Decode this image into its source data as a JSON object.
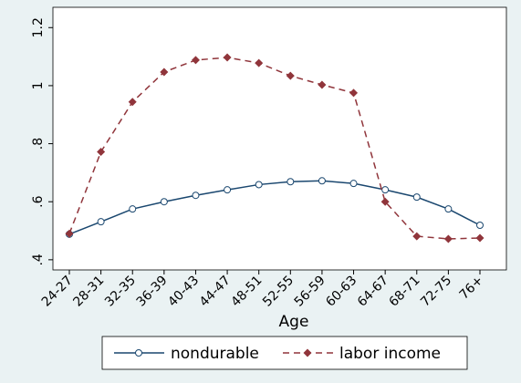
{
  "chart_data": {
    "type": "line",
    "x_label": "Age",
    "categories": [
      "24-27",
      "28-31",
      "32-35",
      "36-39",
      "40-43",
      "44-47",
      "48-51",
      "52-55",
      "56-59",
      "60-63",
      "64-67",
      "68-71",
      "72-75",
      "76+"
    ],
    "series": [
      {
        "name": "nondurable",
        "color": "#1a476f",
        "dash": false,
        "marker": "circle",
        "values": [
          0.488,
          0.531,
          0.575,
          0.6,
          0.622,
          0.641,
          0.659,
          0.669,
          0.672,
          0.663,
          0.641,
          0.616,
          0.575,
          0.519
        ]
      },
      {
        "name": "labor income",
        "color": "#90353b",
        "dash": true,
        "marker": "diamond",
        "values": [
          0.49,
          0.772,
          0.944,
          1.047,
          1.088,
          1.097,
          1.078,
          1.034,
          1.003,
          0.975,
          0.6,
          0.481,
          0.472,
          0.475
        ]
      }
    ],
    "ylim": [
      0.365,
      1.27
    ],
    "yticks": [
      {
        "value": 0.4,
        "label": ".4"
      },
      {
        "value": 0.6,
        "label": ".6"
      },
      {
        "value": 0.8,
        "label": ".8"
      },
      1,
      1.2
    ],
    "grid": false,
    "legend": "bottom"
  }
}
